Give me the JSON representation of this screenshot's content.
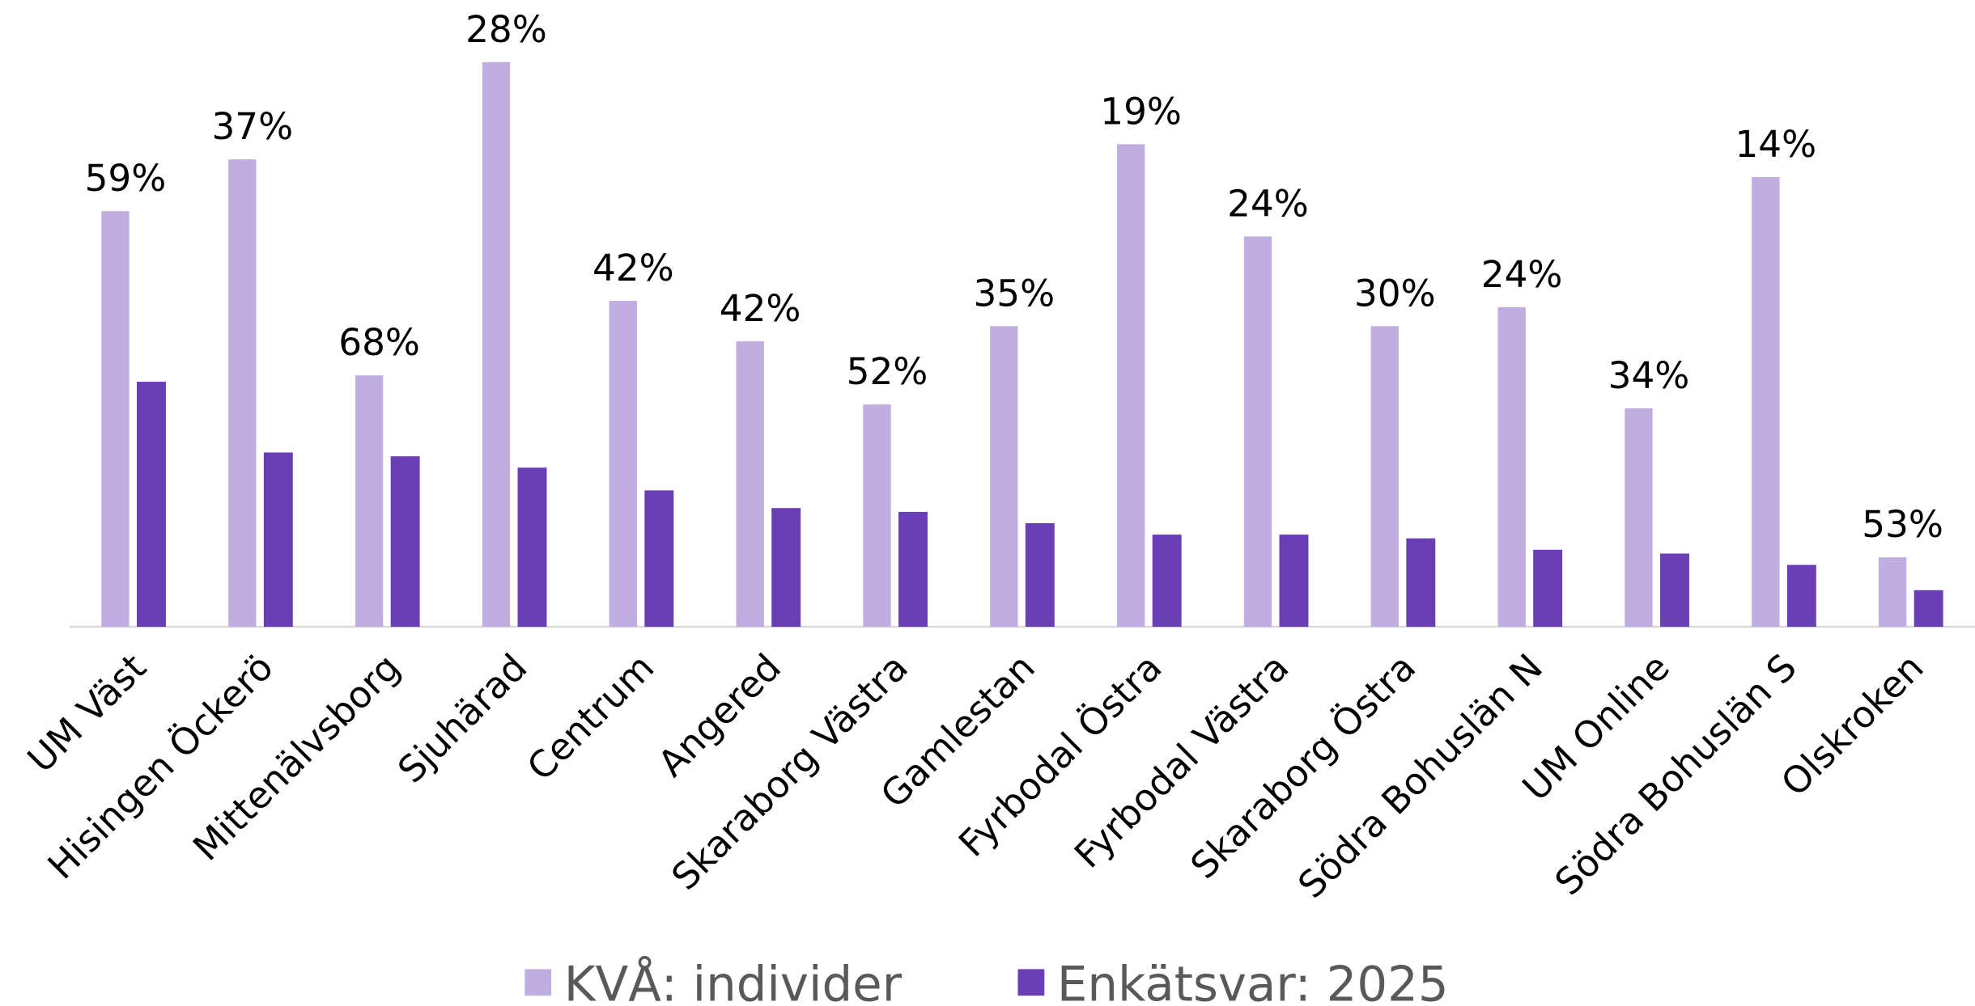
{
  "chart_data": {
    "type": "bar",
    "categories": [
      "UM Väst",
      "Hisingen Öckerö",
      "Mittenälvsborg",
      "Sjuhärad",
      "Centrum",
      "Angered",
      "Skaraborg Västra",
      "Gamlestan",
      "Fyrbodal Östra",
      "Fyrbodal Västra",
      "Skaraborg Östra",
      "Södra Bohuslän N",
      "UM Online",
      "Södra Bohuslän S",
      "Olskroken"
    ],
    "series": [
      {
        "name": "KVÅ: individer",
        "color": "#c0aee0",
        "values": [
          329,
          370,
          199,
          447,
          258,
          226,
          176,
          238,
          382,
          309,
          238,
          253,
          173,
          356,
          55
        ]
      },
      {
        "name": "Enkätsvar: 2025",
        "color": "#6a3fb5",
        "values": [
          194,
          138,
          135,
          126,
          108,
          94,
          91,
          82,
          73,
          73,
          70,
          61,
          58,
          49,
          29
        ]
      }
    ],
    "rate_labels": [
      "59%",
      "37%",
      "68%",
      "28%",
      "42%",
      "42%",
      "52%",
      "35%",
      "19%",
      "24%",
      "30%",
      "24%",
      "34%",
      "14%",
      "53%"
    ],
    "ylim": [
      0,
      476
    ],
    "legend": "bottom"
  }
}
